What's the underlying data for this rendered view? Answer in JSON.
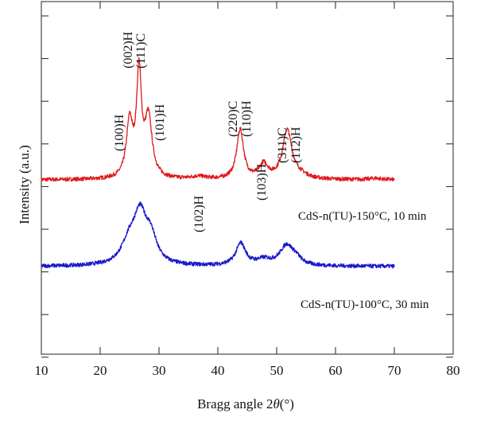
{
  "chart_data": {
    "type": "line",
    "xlabel": "Bragg angle 2θ(°)",
    "xlabel_parts": [
      "Bragg angle 2",
      "θ",
      "(°)"
    ],
    "ylabel": "Intensity (a.u.)",
    "xlim": [
      10,
      80
    ],
    "x_ticks": [
      10,
      20,
      30,
      40,
      50,
      60,
      70,
      80
    ],
    "y_ticks_unlabeled": true,
    "grid": false,
    "series": [
      {
        "name": "CdS-n(TU)-150°C, 10 min",
        "color": "#e0191b",
        "baseline": 0.36,
        "range": [
          10,
          70
        ],
        "peaks": [
          {
            "x": 25.0,
            "h": 1.24,
            "w": 0.65
          },
          {
            "x": 26.6,
            "h": 2.32,
            "w": 0.5
          },
          {
            "x": 28.2,
            "h": 1.34,
            "w": 0.75
          },
          {
            "x": 36.7,
            "h": 0.06,
            "w": 1.5
          },
          {
            "x": 43.8,
            "h": 1.12,
            "w": 0.7
          },
          {
            "x": 47.8,
            "h": 0.32,
            "w": 0.9
          },
          {
            "x": 51.8,
            "h": 1.1,
            "w": 0.95
          },
          {
            "x": 54.0,
            "h": 0.08,
            "w": 1.5
          },
          {
            "x": 66.8,
            "h": 0.03,
            "w": 1.2
          }
        ]
      },
      {
        "name": "CdS-n(TU)-100°C, 30 min",
        "color": "#1a19cc",
        "baseline": -1.6,
        "range": [
          10,
          70
        ],
        "peaks": [
          {
            "x": 25.0,
            "h": 0.5,
            "w": 1.6
          },
          {
            "x": 26.8,
            "h": 1.02,
            "w": 1.3
          },
          {
            "x": 28.6,
            "h": 0.55,
            "w": 1.2
          },
          {
            "x": 43.9,
            "h": 0.5,
            "w": 1.0
          },
          {
            "x": 47.8,
            "h": 0.12,
            "w": 1.5
          },
          {
            "x": 51.7,
            "h": 0.45,
            "w": 1.4
          },
          {
            "x": 53.3,
            "h": 0.12,
            "w": 1.0
          }
        ]
      }
    ],
    "peak_annotations": [
      "(002)H",
      "(111)C",
      "(100)H",
      "(101)H",
      "(102)H",
      "(220)C",
      "(110)H",
      "(103)H",
      "(311)C",
      "(112)H"
    ]
  }
}
